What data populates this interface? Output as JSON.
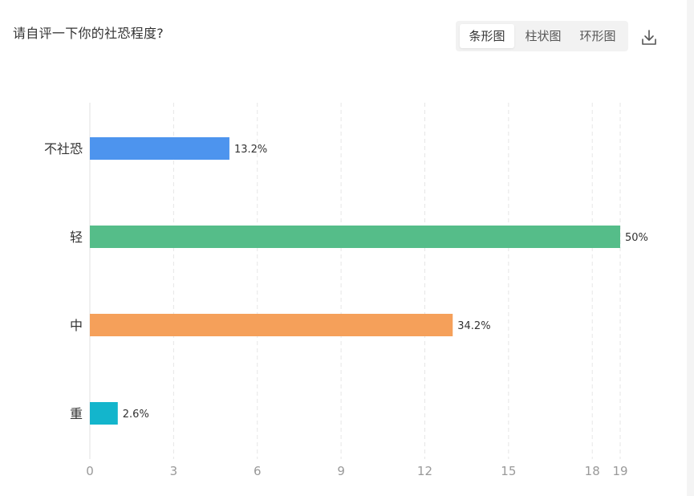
{
  "header": {
    "question_title": "请自评一下你的社恐程度?",
    "chart_tabs": [
      {
        "label": "条形图",
        "active": true
      },
      {
        "label": "柱状图",
        "active": false
      },
      {
        "label": "环形图",
        "active": false
      }
    ],
    "download_icon": "download-icon"
  },
  "chart_data": {
    "type": "bar",
    "orientation": "horizontal",
    "categories": [
      "不社恐",
      "轻",
      "中",
      "重"
    ],
    "values": [
      5,
      19,
      13,
      1
    ],
    "data_labels": [
      "13.2%",
      "50%",
      "34.2%",
      "2.6%"
    ],
    "colors": [
      "#4d94ee",
      "#55bd89",
      "#f5a05a",
      "#13b5cc"
    ],
    "xlim": [
      0,
      19
    ],
    "x_ticks": [
      "0",
      "3",
      "6",
      "9",
      "12",
      "15",
      "18",
      "19"
    ],
    "grid": true,
    "legend": "none"
  }
}
